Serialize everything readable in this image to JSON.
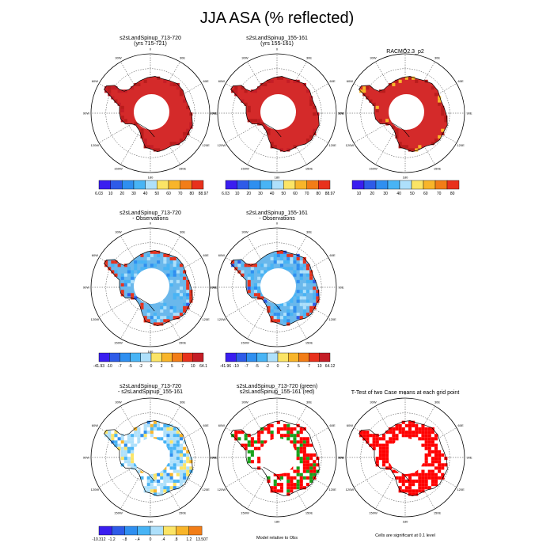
{
  "title": "JJA ASA (% reflected)",
  "map_labels": {
    "top": "0",
    "ne": "30E",
    "e1": "60E",
    "e2": "90E",
    "e3": "120E",
    "se": "150E",
    "bottom": "180",
    "sw": "150W",
    "w3": "120W",
    "w2": "90W",
    "w1": "60W",
    "nw": "30W"
  },
  "colors": {
    "abs10": [
      "#3a1ef0",
      "#2e5be8",
      "#2f8ff0",
      "#48b4f5",
      "#aee0fb",
      "#fbe466",
      "#f8b52a",
      "#f27d17",
      "#e8311c",
      "#c41d26"
    ],
    "diff10": [
      "#3a1ef0",
      "#2e5be8",
      "#2f8ff0",
      "#48b4f5",
      "#aee0fb",
      "#fbe466",
      "#f8b52a",
      "#f27d17",
      "#e8311c",
      "#c41d26"
    ],
    "land_red": "#d42a2a",
    "ice_blue": "#6ab8ec",
    "sig_red": "#ff0000",
    "sig_green": "#17a11a"
  },
  "chart_data": [
    {
      "type": "heatmap",
      "title": "s2sLandSpinup_713-720",
      "subtitle": "(yrs 715-721)",
      "field": "land_red",
      "colorbar_labels": [
        "6.03",
        "10",
        "20",
        "30",
        "40",
        "50",
        "60",
        "70",
        "80",
        "88.97"
      ]
    },
    {
      "type": "heatmap",
      "title": "s2sLandSpinup_155-161",
      "subtitle": "(yrs 155-161)",
      "field": "land_red",
      "colorbar_labels": [
        "6.03",
        "10",
        "20",
        "30",
        "40",
        "50",
        "60",
        "70",
        "80",
        "88.97"
      ]
    },
    {
      "type": "heatmap",
      "title": "RACMO2.3_p2",
      "subtitle": "",
      "field": "land_red",
      "colorbar_labels": [
        "10",
        "20",
        "30",
        "40",
        "50",
        "60",
        "70",
        "80"
      ]
    },
    {
      "type": "heatmap",
      "title": "s2sLandSpinup_713-720",
      "subtitle": "- Observations",
      "field": "ice_blue",
      "colorbar_labels": [
        "-41.93",
        "-10",
        "-7",
        "-5",
        "-2",
        "0",
        "2",
        "5",
        "7",
        "10",
        "64.1"
      ]
    },
    {
      "type": "heatmap",
      "title": "s2sLandSpinup_155-161",
      "subtitle": "- Observations",
      "field": "ice_blue",
      "colorbar_labels": [
        "-41.96",
        "-10",
        "-7",
        "-5",
        "-2",
        "0",
        "2",
        "5",
        "7",
        "10",
        "64.12"
      ]
    },
    {
      "type": "heatmap",
      "title": "s2sLandSpinup_713-720",
      "subtitle": "- s2sLandSpinup_155-161",
      "field": "diff",
      "colorbar_labels": [
        "-10.312",
        "-1.2",
        "-.8",
        "-.4",
        "0",
        ".4",
        ".8",
        "1.2",
        "13.507"
      ]
    },
    {
      "type": "heatmap",
      "title": "s2sLandSpinup_713-720 (green)",
      "subtitle": "s2sLandSpinup_155-161 (red)",
      "field": "sig_rg",
      "footnote": "Model relative to Obs"
    },
    {
      "type": "heatmap",
      "title": "T-Test of two Case means at each grid point",
      "subtitle": "",
      "field": "sig_red",
      "footnote": "Cells are significant at 0.1 level"
    }
  ]
}
